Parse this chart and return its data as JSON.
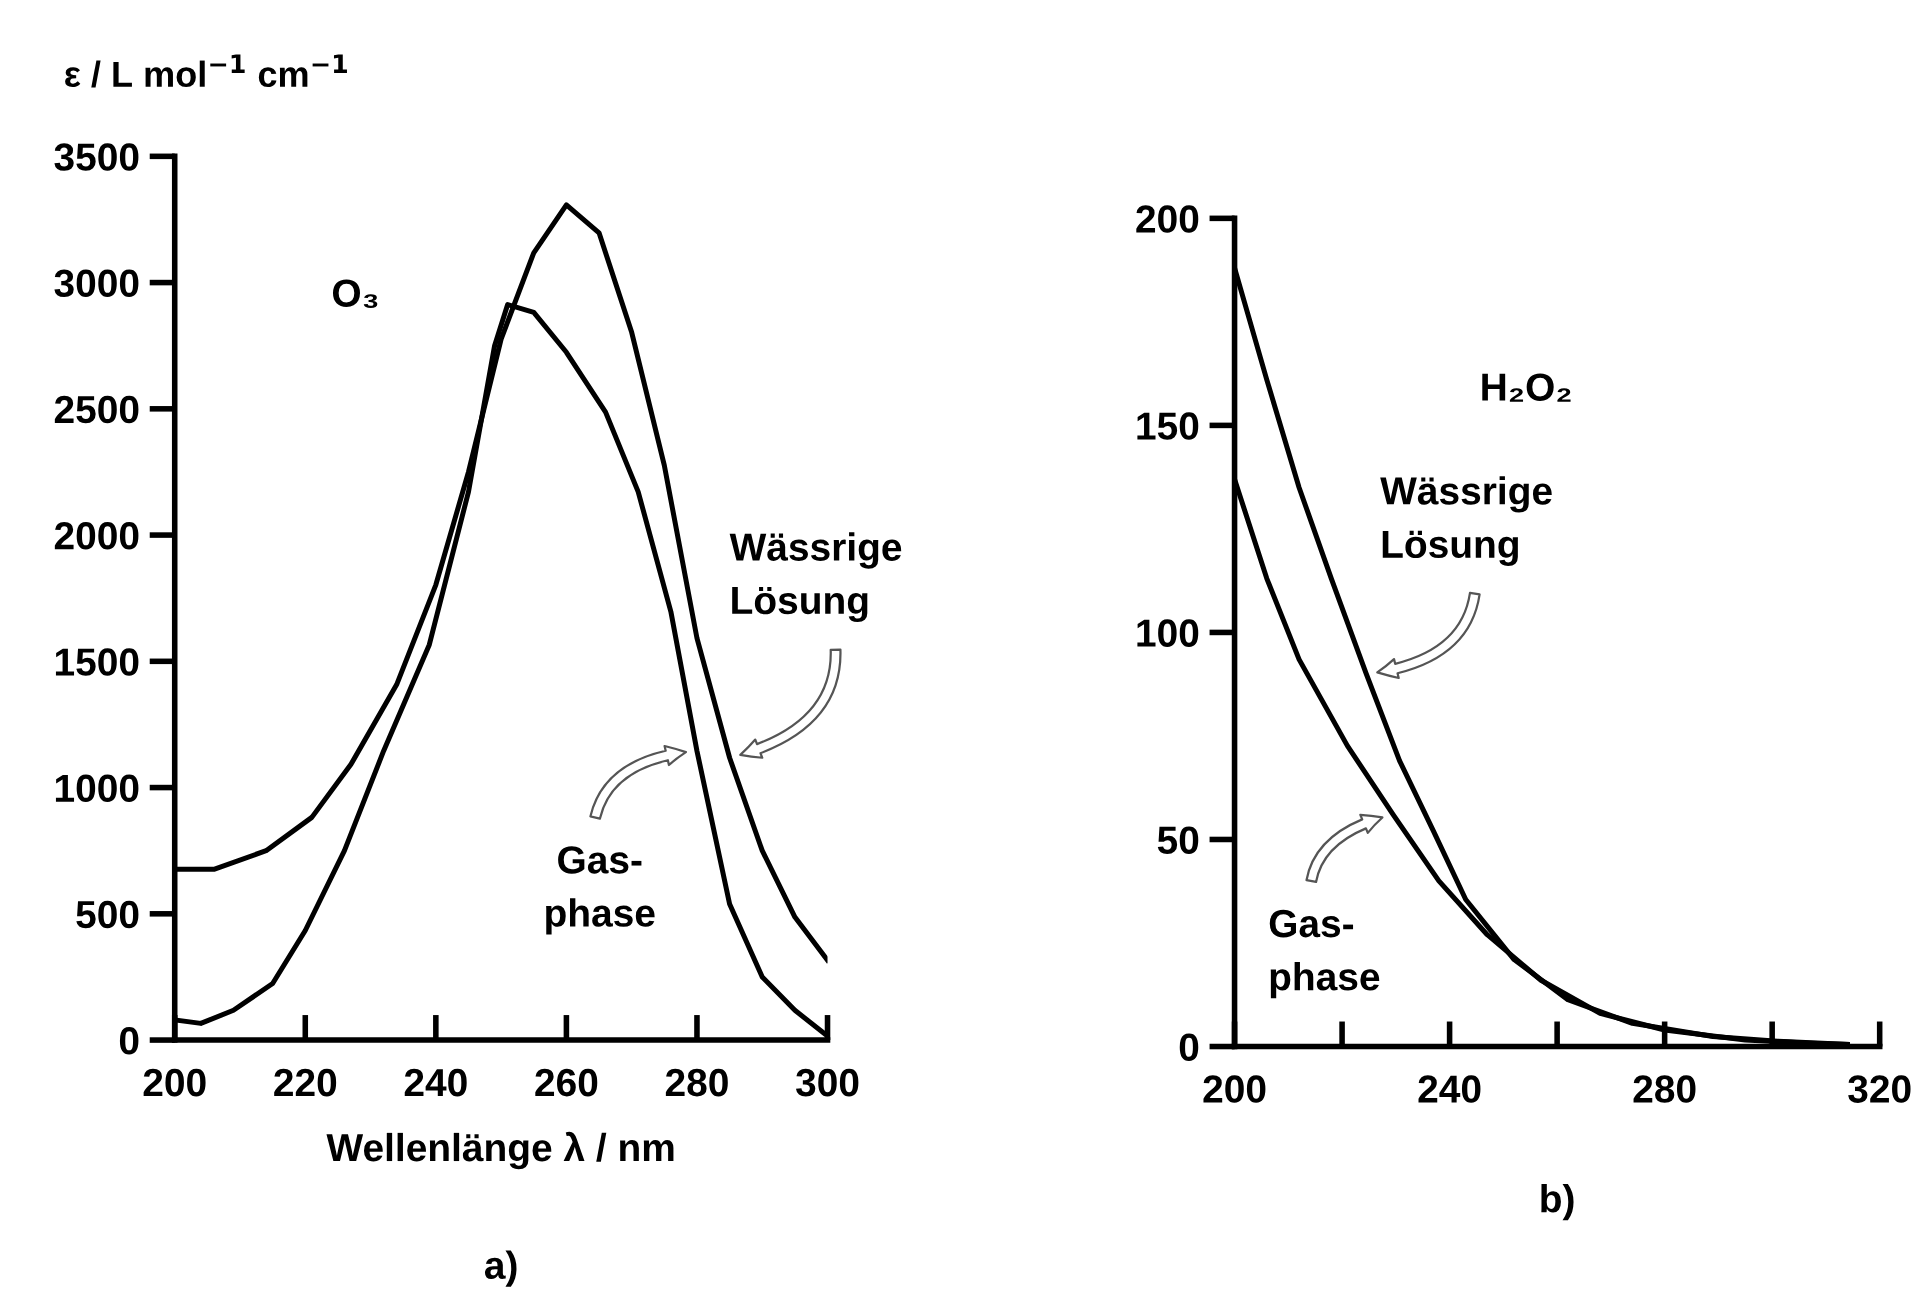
{
  "chart_data": [
    {
      "type": "line",
      "title": "a)",
      "xlabel": "Wellenlänge λ / nm",
      "ylabel": "ε / L mol$^{−1}$ cm$^{−1}$",
      "annotations": [
        "O₃"
      ],
      "xlim": [
        200,
        300
      ],
      "ylim": [
        0,
        3500
      ],
      "xticks": [
        200,
        220,
        240,
        260,
        280,
        300
      ],
      "yticks": [
        0,
        500,
        1000,
        1500,
        2000,
        2500,
        3000,
        3500
      ],
      "grid": false,
      "legend": false,
      "line_style": "solid",
      "series": [
        {
          "name": "Wässrige\nLösung",
          "color": "#000000",
          "x": [
            200,
            206,
            214,
            221,
            227,
            234,
            240,
            245,
            250,
            255,
            260,
            265,
            270,
            275,
            280,
            285,
            290,
            295,
            300
          ],
          "values": [
            676,
            676,
            750,
            882,
            1092,
            1408,
            1803,
            2250,
            2776,
            3118,
            3308,
            3197,
            2803,
            2276,
            1592,
            1118,
            750,
            487,
            316
          ]
        },
        {
          "name": "Gas-\nphase",
          "color": "#000000",
          "x": [
            200,
            204,
            209,
            215,
            220,
            226,
            232,
            239,
            245,
            249,
            251,
            255,
            260,
            266,
            271,
            276,
            280,
            285,
            290,
            295,
            299.5
          ],
          "values": [
            80,
            66,
            118,
            224,
            434,
            750,
            1145,
            1566,
            2171,
            2750,
            2913,
            2882,
            2724,
            2487,
            2171,
            1697,
            1145,
            539,
            250,
            118,
            26
          ]
        }
      ]
    },
    {
      "type": "line",
      "title": "b)",
      "annotations": [
        "H₂O₂"
      ],
      "xlim": [
        200,
        320
      ],
      "ylim": [
        0,
        200
      ],
      "xticks": [
        200,
        {
          "value": 220,
          "label": null
        },
        240,
        {
          "value": 260,
          "label": null
        },
        280,
        {
          "value": 300,
          "label": null
        },
        320
      ],
      "yticks": [
        0,
        50,
        100,
        150,
        200
      ],
      "grid": false,
      "legend": false,
      "line_style": "solid",
      "series": [
        {
          "name": "Wässrige\nLösung",
          "color": "#000000",
          "x": [
            200,
            206,
            212,
            218,
            224.5,
            230.7,
            237,
            243,
            252,
            262,
            274,
            289,
            301,
            314
          ],
          "values": [
            188,
            161,
            135,
            113,
            90,
            69,
            52,
            35.5,
            21,
            11.3,
            5.6,
            2.4,
            1.3,
            0.5
          ]
        },
        {
          "name": "Gas-\nphase",
          "color": "#000000",
          "x": [
            200,
            206,
            212,
            221,
            229.5,
            238,
            247,
            257,
            268,
            280,
            295,
            307,
            314
          ],
          "values": [
            137,
            113,
            93.5,
            72.6,
            56,
            40,
            27,
            16,
            8,
            4,
            1.6,
            0.8,
            0.5
          ]
        }
      ]
    }
  ]
}
